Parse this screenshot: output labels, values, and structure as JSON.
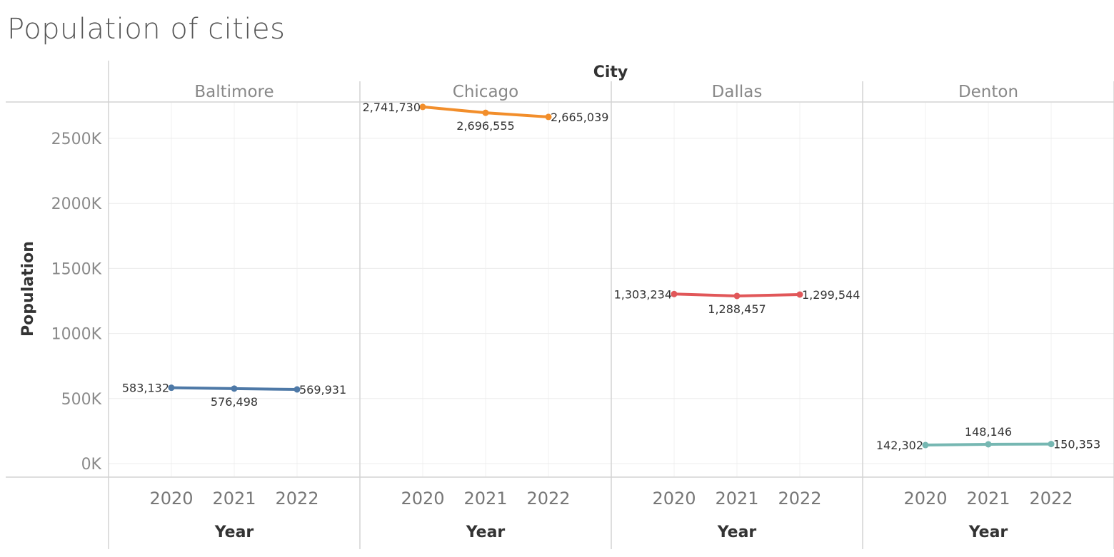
{
  "title": "Population of cities",
  "chart_data": {
    "type": "line",
    "title": "Population of cities",
    "facet_label": "City",
    "xlabel": "Year",
    "ylabel": "Population",
    "x": [
      "2020",
      "2021",
      "2022"
    ],
    "y_ticks": [
      "0K",
      "500K",
      "1000K",
      "1500K",
      "2000K",
      "2500K"
    ],
    "ylim": [
      0,
      2900000
    ],
    "grid": true,
    "series": [
      {
        "name": "Baltimore",
        "color": "#4e79a7",
        "values": [
          583132,
          576498,
          569931
        ],
        "labels": [
          "583,132",
          "576,498",
          "569,931"
        ]
      },
      {
        "name": "Chicago",
        "color": "#f28e2b",
        "values": [
          2741730,
          2696555,
          2665039
        ],
        "labels": [
          "2,741,730",
          "2,696,555",
          "2,665,039"
        ]
      },
      {
        "name": "Dallas",
        "color": "#e15759",
        "values": [
          1303234,
          1288457,
          1299544
        ],
        "labels": [
          "1,303,234",
          "1,288,457",
          "1,299,544"
        ]
      },
      {
        "name": "Denton",
        "color": "#76b7b2",
        "values": [
          142302,
          148146,
          150353
        ],
        "labels": [
          "142,302",
          "148,146",
          "150,353"
        ]
      }
    ]
  }
}
